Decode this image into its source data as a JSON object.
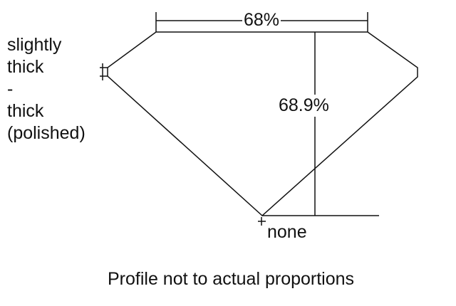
{
  "girdle_label": [
    "slightly",
    "thick",
    "-",
    "thick",
    "(polished)"
  ],
  "table_label": "68%",
  "depth_label": "68.9%",
  "culet_label": "none",
  "caption": "Profile not to actual proportions",
  "colors": {
    "line": "#111111",
    "background": "#ffffff"
  }
}
